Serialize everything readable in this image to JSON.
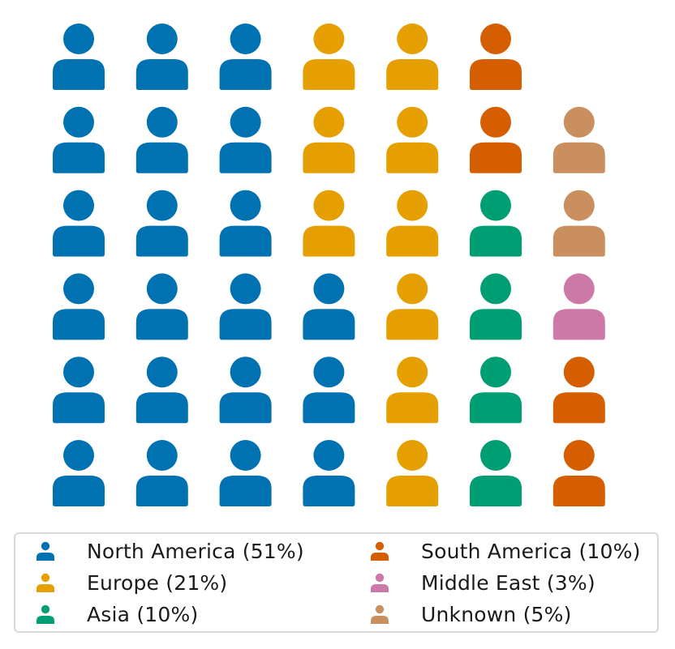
{
  "chart_data": {
    "type": "waffle",
    "icon": "person-icon",
    "grid": {
      "rows": 6,
      "columns": 7,
      "fill_order": "column-major, bottom-to-top"
    },
    "series": [
      {
        "name": "North America",
        "label": "North America (51%)",
        "percent": 51,
        "count": 21,
        "color": "#0072b2"
      },
      {
        "name": "Europe",
        "label": "Europe (21%)",
        "percent": 21,
        "count": 9,
        "color": "#e69f00"
      },
      {
        "name": "Asia",
        "label": "Asia (10%)",
        "percent": 10,
        "count": 4,
        "color": "#009e73"
      },
      {
        "name": "South America",
        "label": "South America (10%)",
        "percent": 10,
        "count": 4,
        "color": "#d55e00"
      },
      {
        "name": "Middle East",
        "label": "Middle East (3%)",
        "percent": 3,
        "count": 1,
        "color": "#cc79a7"
      },
      {
        "name": "Unknown",
        "label": "Unknown (5%)",
        "percent": 5,
        "count": 2,
        "color": "#ca8f5f"
      }
    ],
    "legend": {
      "placement": "bottom",
      "columns": 2
    }
  }
}
